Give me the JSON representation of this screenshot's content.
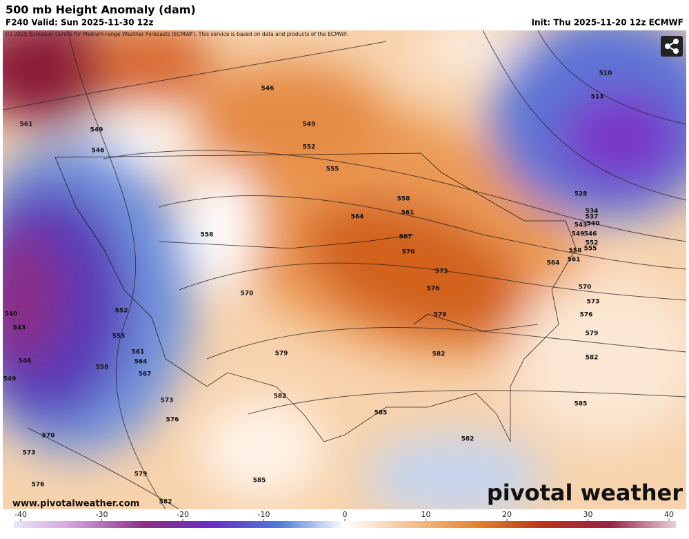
{
  "header": {
    "title": "500 mb Height Anomaly (dam)",
    "valid": "F240 Valid: Sun 2025-11-30 12z",
    "init": "Init: Thu 2025-11-20 12z ECMWF",
    "copyright": "(c) 2025 European Centre for Medium-range Weather Forecasts (ECMWF). This service is based on data and products of the ECMWF."
  },
  "map": {
    "contour_labels": [
      561,
      549,
      546,
      546,
      549,
      552,
      555,
      558,
      564,
      558,
      561,
      567,
      570,
      573,
      576,
      579,
      570,
      552,
      555,
      561,
      564,
      558,
      567,
      579,
      582,
      582,
      573,
      576,
      585,
      582,
      585,
      579,
      582,
      570,
      573,
      576,
      540,
      543,
      546,
      549,
      510,
      513,
      528,
      534,
      537,
      540,
      543,
      549,
      546,
      552,
      558,
      555,
      561,
      564,
      570,
      573,
      576,
      579,
      582,
      585
    ],
    "website": "www.pivotalweather.com",
    "watermark": "pivotal weather"
  },
  "colorbar": {
    "ticks": [
      -40,
      -30,
      -20,
      -10,
      0,
      10,
      20,
      30,
      40
    ]
  }
}
